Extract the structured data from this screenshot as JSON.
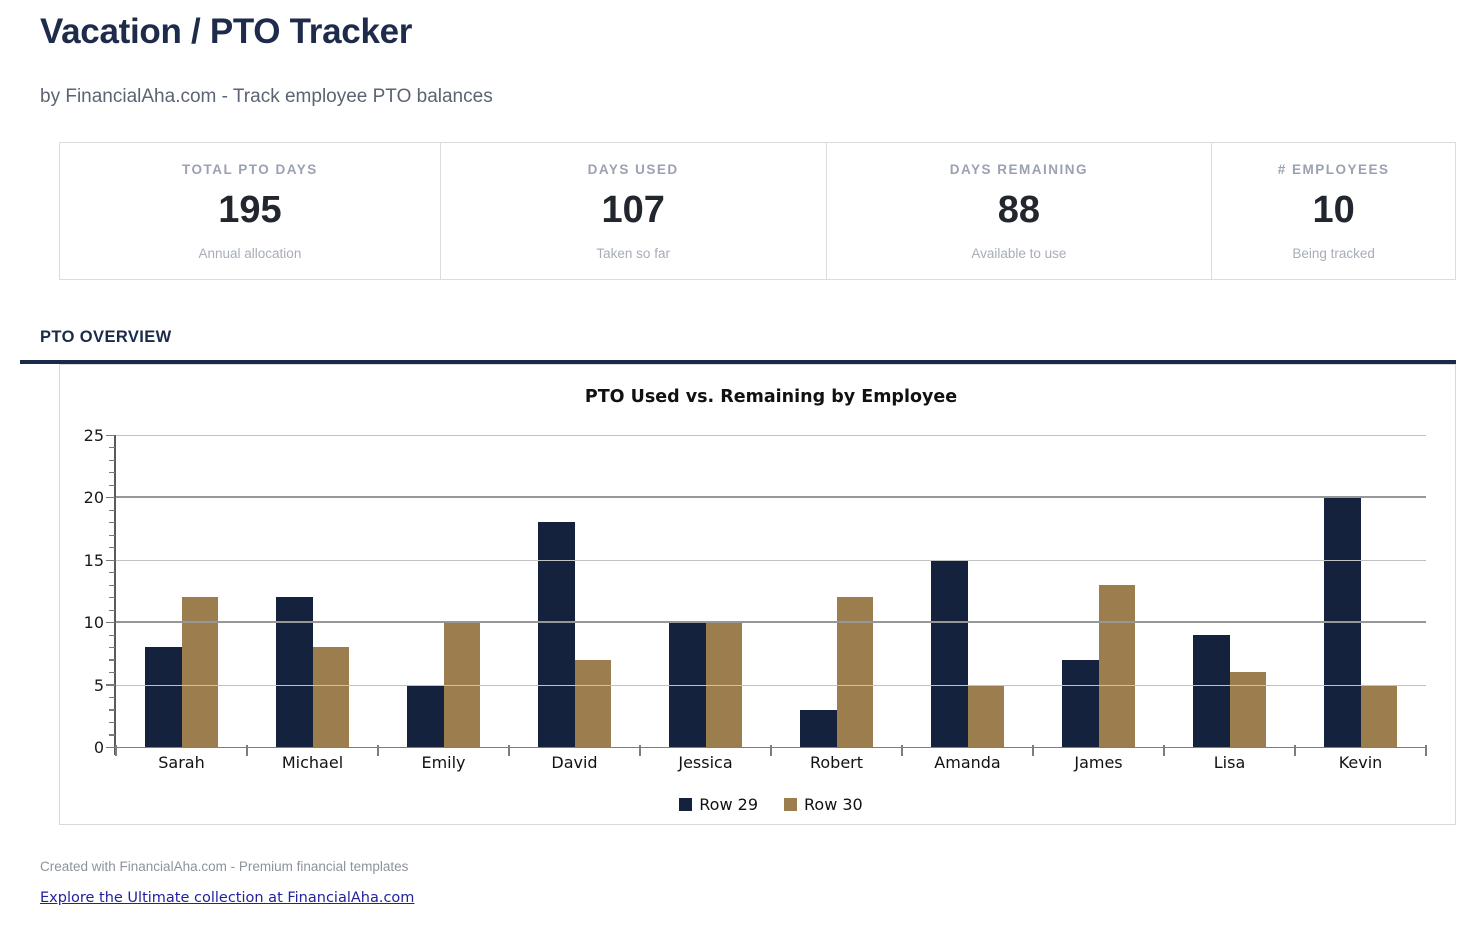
{
  "header": {
    "title": "Vacation / PTO Tracker",
    "subtitle": "by FinancialAha.com - Track employee PTO balances"
  },
  "stats": [
    {
      "label": "TOTAL PTO DAYS",
      "value": "195",
      "sublabel": "Annual allocation"
    },
    {
      "label": "DAYS USED",
      "value": "107",
      "sublabel": "Taken so far"
    },
    {
      "label": "DAYS REMAINING",
      "value": "88",
      "sublabel": "Available to use"
    },
    {
      "label": "# EMPLOYEES",
      "value": "10",
      "sublabel": "Being tracked"
    }
  ],
  "section": {
    "title": "PTO OVERVIEW"
  },
  "chart_data": {
    "type": "bar",
    "title": "PTO Used vs. Remaining by Employee",
    "categories": [
      "Sarah",
      "Michael",
      "Emily",
      "David",
      "Jessica",
      "Robert",
      "Amanda",
      "James",
      "Lisa",
      "Kevin"
    ],
    "series": [
      {
        "name": "Row 29",
        "color": "#15223e",
        "values": [
          8,
          12,
          5,
          18,
          10,
          3,
          15,
          7,
          9,
          20
        ]
      },
      {
        "name": "Row 30",
        "color": "#9c7d4e",
        "values": [
          12,
          8,
          10,
          7,
          10,
          12,
          5,
          13,
          6,
          5
        ]
      }
    ],
    "xlabel": "",
    "ylabel": "",
    "ylim": [
      0,
      25
    ],
    "yticks": [
      0,
      5,
      10,
      15,
      20,
      25
    ],
    "grid": true,
    "legend_position": "bottom"
  },
  "footer": {
    "credit": "Created with FinancialAha.com - Premium financial templates",
    "link": "Explore the Ultimate collection at FinancialAha.com"
  },
  "colors": {
    "accent_navy": "#1b2a4a",
    "bar_used": "#15223e",
    "bar_remaining": "#9c7d4e",
    "link": "#22229e"
  }
}
